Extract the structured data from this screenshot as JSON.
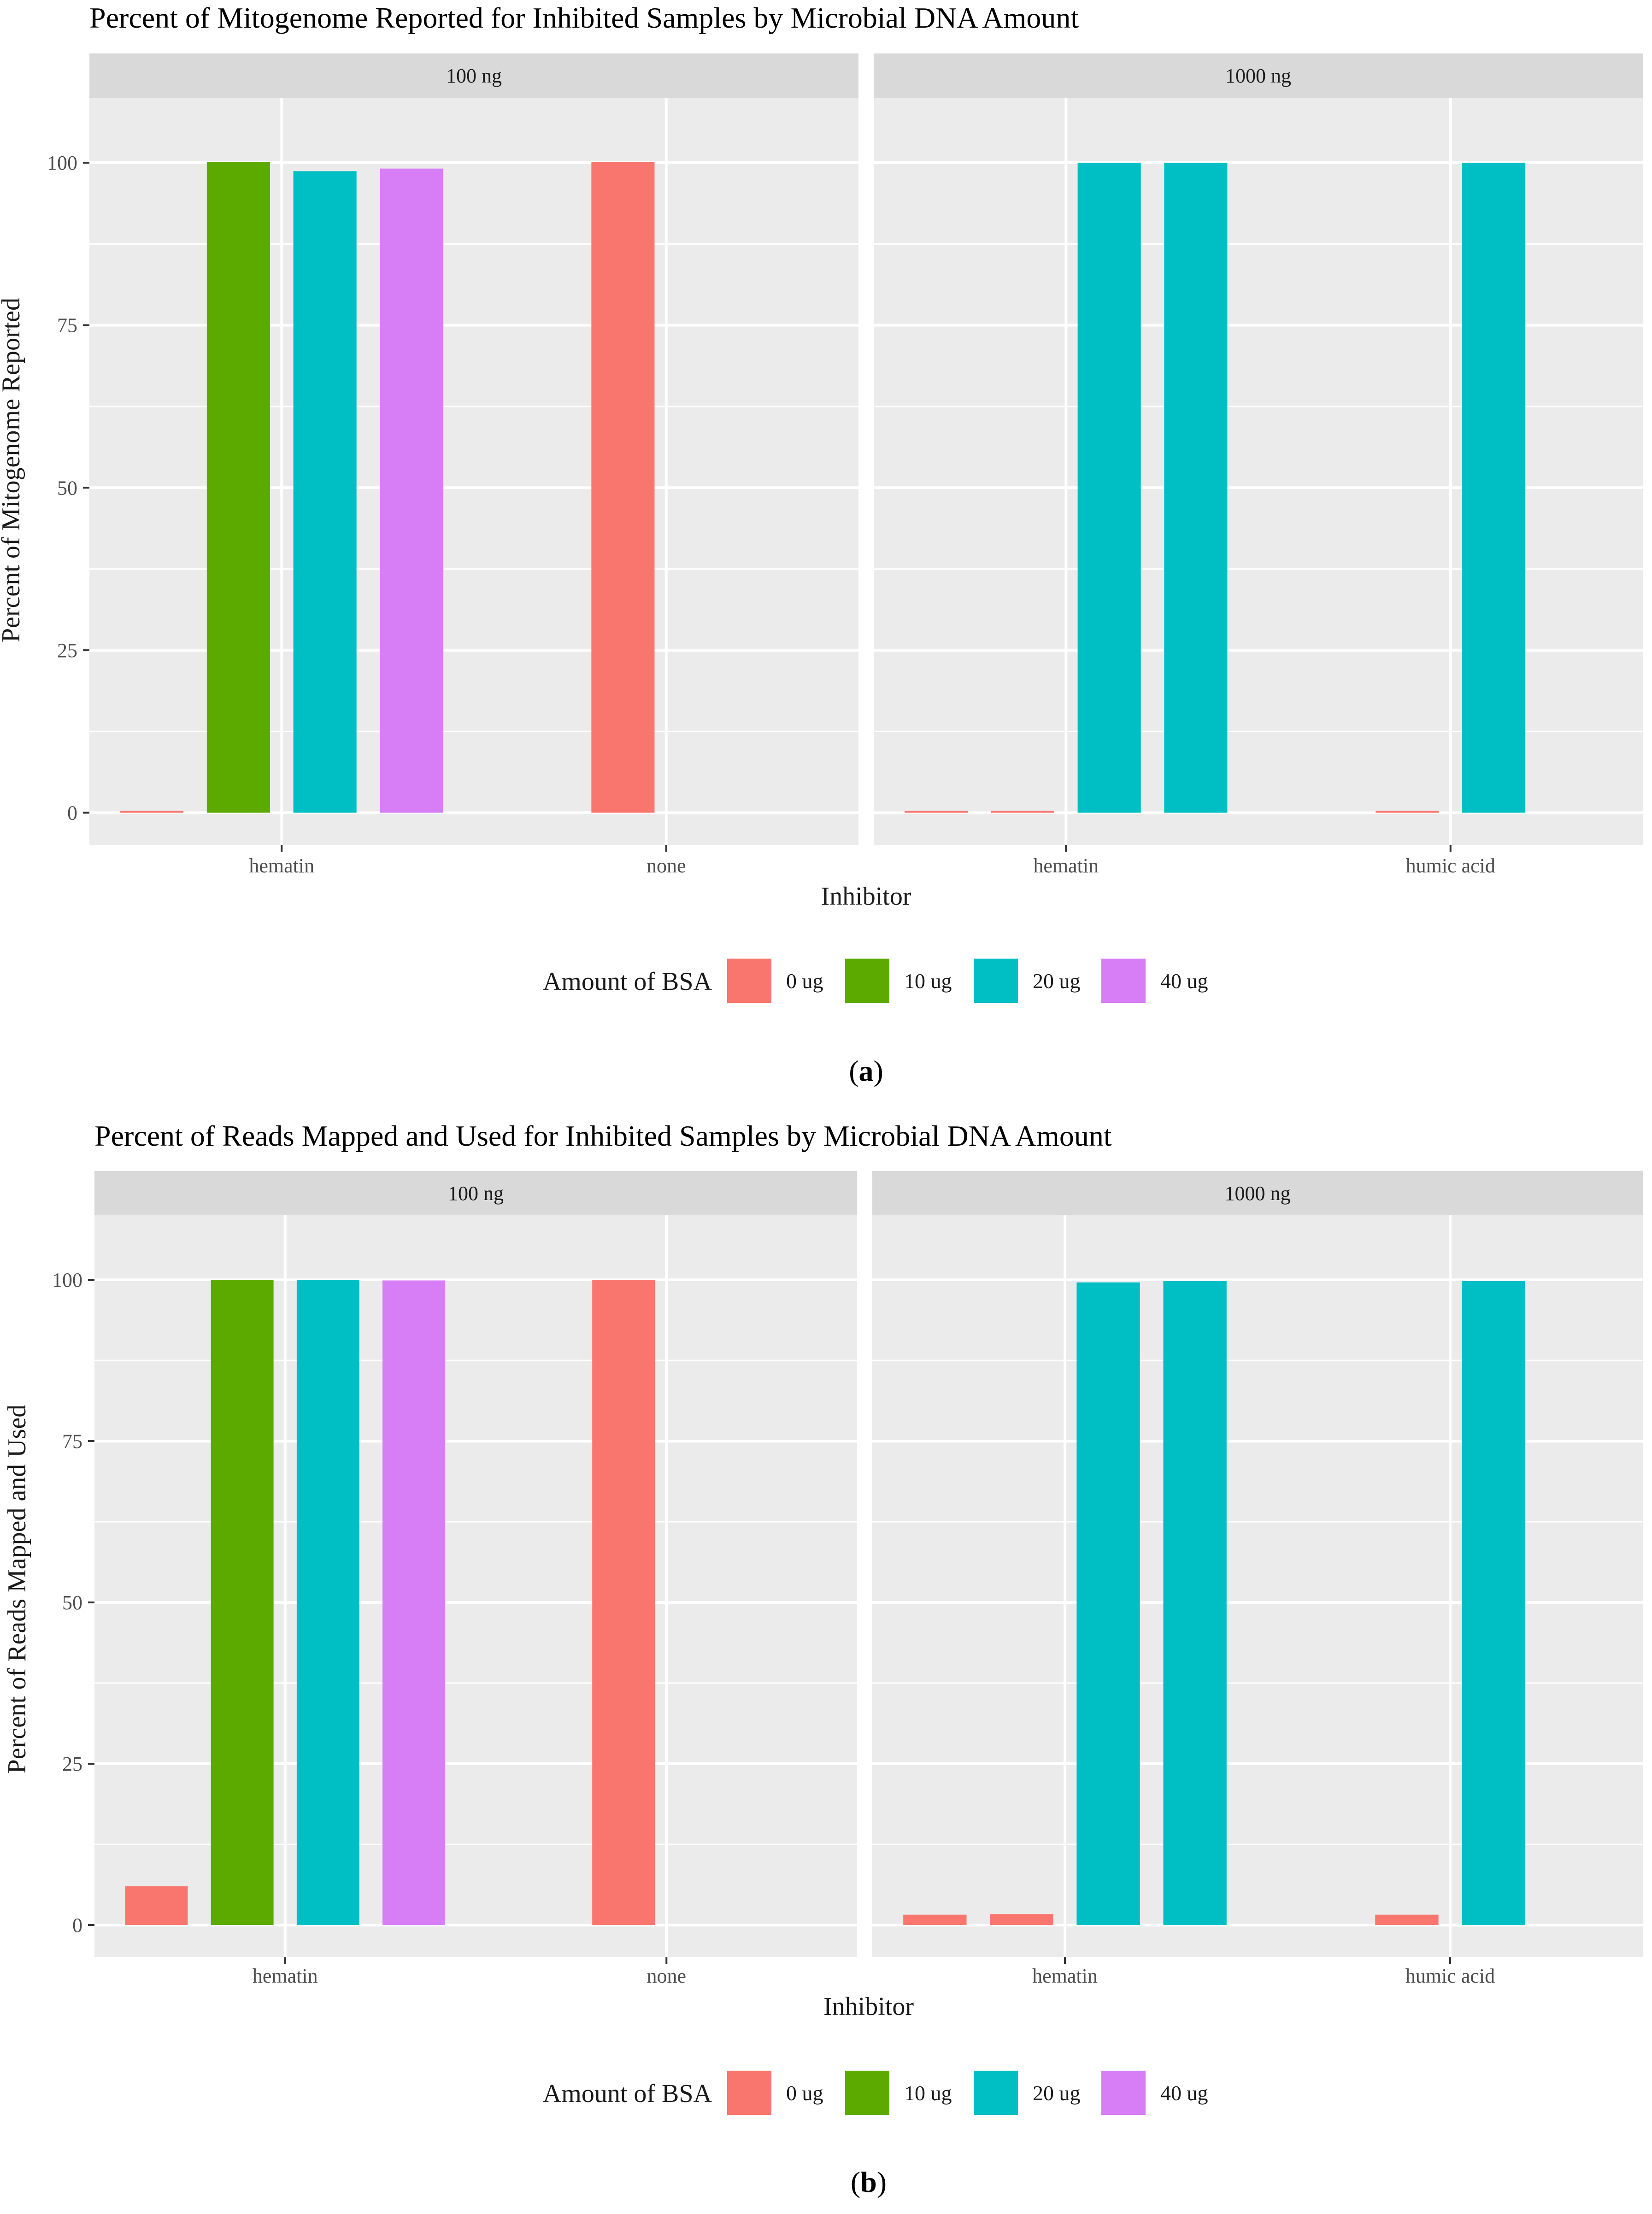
{
  "colors": {
    "panel_bg": "#EBEBEB",
    "strip_bg": "#D9D9D9",
    "grid": "#FFFFFF",
    "axis_text": "#4D4D4D",
    "text": "#1A1A1A"
  },
  "legend": {
    "title": "Amount of BSA",
    "items": [
      {
        "label": "0 ug",
        "color": "#F8766D"
      },
      {
        "label": "10 ug",
        "color": "#5CAA00"
      },
      {
        "label": "20 ug",
        "color": "#00BFC4"
      },
      {
        "label": "40 ug",
        "color": "#D77DF5"
      }
    ]
  },
  "chart_data": [
    {
      "type": "bar",
      "title": "Percent of Mitogenome Reported for Inhibited Samples by Microbial DNA Amount",
      "caption_letter": "a",
      "xlabel": "Inhibitor",
      "ylabel": "Percent of Mitogenome Reported",
      "ylim": [
        -5,
        110
      ],
      "yticks": [
        0,
        25,
        50,
        75,
        100
      ],
      "grid": true,
      "legend_position": "bottom",
      "facets": [
        {
          "label": "100 ng",
          "categories": [
            "hematin",
            "none"
          ],
          "bars": [
            {
              "category": "hematin",
              "slot": 0,
              "series": "0 ug",
              "value": 0.3
            },
            {
              "category": "hematin",
              "slot": 1,
              "series": "10 ug",
              "value": 100.1
            },
            {
              "category": "hematin",
              "slot": 2,
              "series": "20 ug",
              "value": 98.7
            },
            {
              "category": "hematin",
              "slot": 3,
              "series": "40 ug",
              "value": 99.1
            },
            {
              "category": "none",
              "slot": 1,
              "series": "0 ug",
              "value": 100.1
            }
          ]
        },
        {
          "label": "1000 ng",
          "categories": [
            "hematin",
            "humic acid"
          ],
          "bars": [
            {
              "category": "hematin",
              "slot": 0,
              "series": "0 ug",
              "value": 0.3
            },
            {
              "category": "hematin",
              "slot": 1,
              "series": "0 ug",
              "value": 0.3
            },
            {
              "category": "hematin",
              "slot": 2,
              "series": "20 ug",
              "value": 100
            },
            {
              "category": "hematin",
              "slot": 3,
              "series": "20 ug",
              "value": 100
            },
            {
              "category": "humic acid",
              "slot": 1,
              "series": "0 ug",
              "value": 0.3
            },
            {
              "category": "humic acid",
              "slot": 2,
              "series": "20 ug",
              "value": 100
            }
          ]
        }
      ]
    },
    {
      "type": "bar",
      "title": "Percent of Reads Mapped and Used for Inhibited Samples by Microbial DNA Amount",
      "caption_letter": "b",
      "xlabel": "Inhibitor",
      "ylabel": "Percent of Reads Mapped and Used",
      "ylim": [
        -5,
        110
      ],
      "yticks": [
        0,
        25,
        50,
        75,
        100
      ],
      "grid": true,
      "legend_position": "bottom",
      "facets": [
        {
          "label": "100 ng",
          "categories": [
            "hematin",
            "none"
          ],
          "bars": [
            {
              "category": "hematin",
              "slot": 0,
              "series": "0 ug",
              "value": 6
            },
            {
              "category": "hematin",
              "slot": 1,
              "series": "10 ug",
              "value": 100
            },
            {
              "category": "hematin",
              "slot": 2,
              "series": "20 ug",
              "value": 100
            },
            {
              "category": "hematin",
              "slot": 3,
              "series": "40 ug",
              "value": 99.9
            },
            {
              "category": "none",
              "slot": 1,
              "series": "0 ug",
              "value": 100
            }
          ]
        },
        {
          "label": "1000 ng",
          "categories": [
            "hematin",
            "humic acid"
          ],
          "bars": [
            {
              "category": "hematin",
              "slot": 0,
              "series": "0 ug",
              "value": 1.6
            },
            {
              "category": "hematin",
              "slot": 1,
              "series": "0 ug",
              "value": 1.7
            },
            {
              "category": "hematin",
              "slot": 2,
              "series": "20 ug",
              "value": 99.6
            },
            {
              "category": "hematin",
              "slot": 3,
              "series": "20 ug",
              "value": 99.8
            },
            {
              "category": "humic acid",
              "slot": 1,
              "series": "0 ug",
              "value": 1.6
            },
            {
              "category": "humic acid",
              "slot": 2,
              "series": "20 ug",
              "value": 99.8
            }
          ]
        }
      ]
    }
  ]
}
